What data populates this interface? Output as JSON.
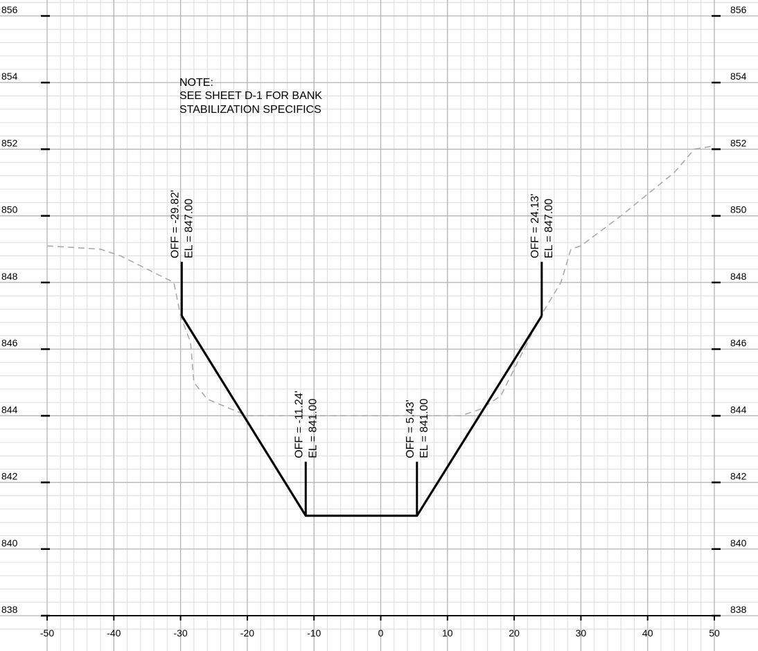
{
  "chart_data": {
    "type": "line",
    "title": "",
    "xlabel": "",
    "ylabel": "",
    "xlim": [
      -50,
      50
    ],
    "ylim": [
      838,
      856
    ],
    "x_ticks": [
      "-50",
      "-40",
      "-30",
      "-20",
      "-10",
      "0",
      "10",
      "20",
      "30",
      "40",
      "50"
    ],
    "y_ticks": [
      "838",
      "840",
      "842",
      "844",
      "846",
      "848",
      "850",
      "852",
      "854",
      "856"
    ],
    "grid": "on",
    "series": [
      {
        "style": "dashed",
        "color": "#aaaaaa",
        "points": [
          [
            -50,
            849.1
          ],
          [
            -42,
            849
          ],
          [
            -39,
            848.8
          ],
          [
            -31,
            848
          ],
          [
            -30,
            847
          ],
          [
            -28.5,
            846.2
          ],
          [
            -28,
            845
          ],
          [
            -26,
            844.5
          ],
          [
            -20,
            844
          ],
          [
            -10,
            844
          ],
          [
            0,
            844
          ],
          [
            5,
            844
          ],
          [
            12,
            844
          ],
          [
            15,
            844.2
          ],
          [
            18,
            844.6
          ],
          [
            21,
            845.8
          ],
          [
            24,
            847
          ],
          [
            27,
            848
          ],
          [
            28.5,
            849
          ],
          [
            30,
            849.1
          ],
          [
            36,
            850
          ],
          [
            44,
            851.3
          ],
          [
            47,
            852
          ],
          [
            50,
            852.1
          ]
        ]
      },
      {
        "style": "solid",
        "color": "#000000",
        "points": [
          [
            -29.82,
            847
          ],
          [
            -11.24,
            841
          ],
          [
            5.43,
            841
          ],
          [
            24.13,
            847
          ]
        ]
      }
    ],
    "callouts": [
      {
        "x": -29.82,
        "y": 847,
        "line1": "OFF = -29.82'",
        "line2": "EL = 847.00"
      },
      {
        "x": -11.24,
        "y": 841,
        "line1": "OFF = -11.24'",
        "line2": "EL = 841.00"
      },
      {
        "x": 5.43,
        "y": 841,
        "line1": "OFF = 5.43'",
        "line2": "EL = 841.00"
      },
      {
        "x": 24.13,
        "y": 847,
        "line1": "OFF = 24.13'",
        "line2": "EL = 847.00"
      }
    ],
    "note": [
      "NOTE:",
      "SEE SHEET D-1 FOR BANK",
      "STABILIZATION SPECIFICS"
    ]
  }
}
